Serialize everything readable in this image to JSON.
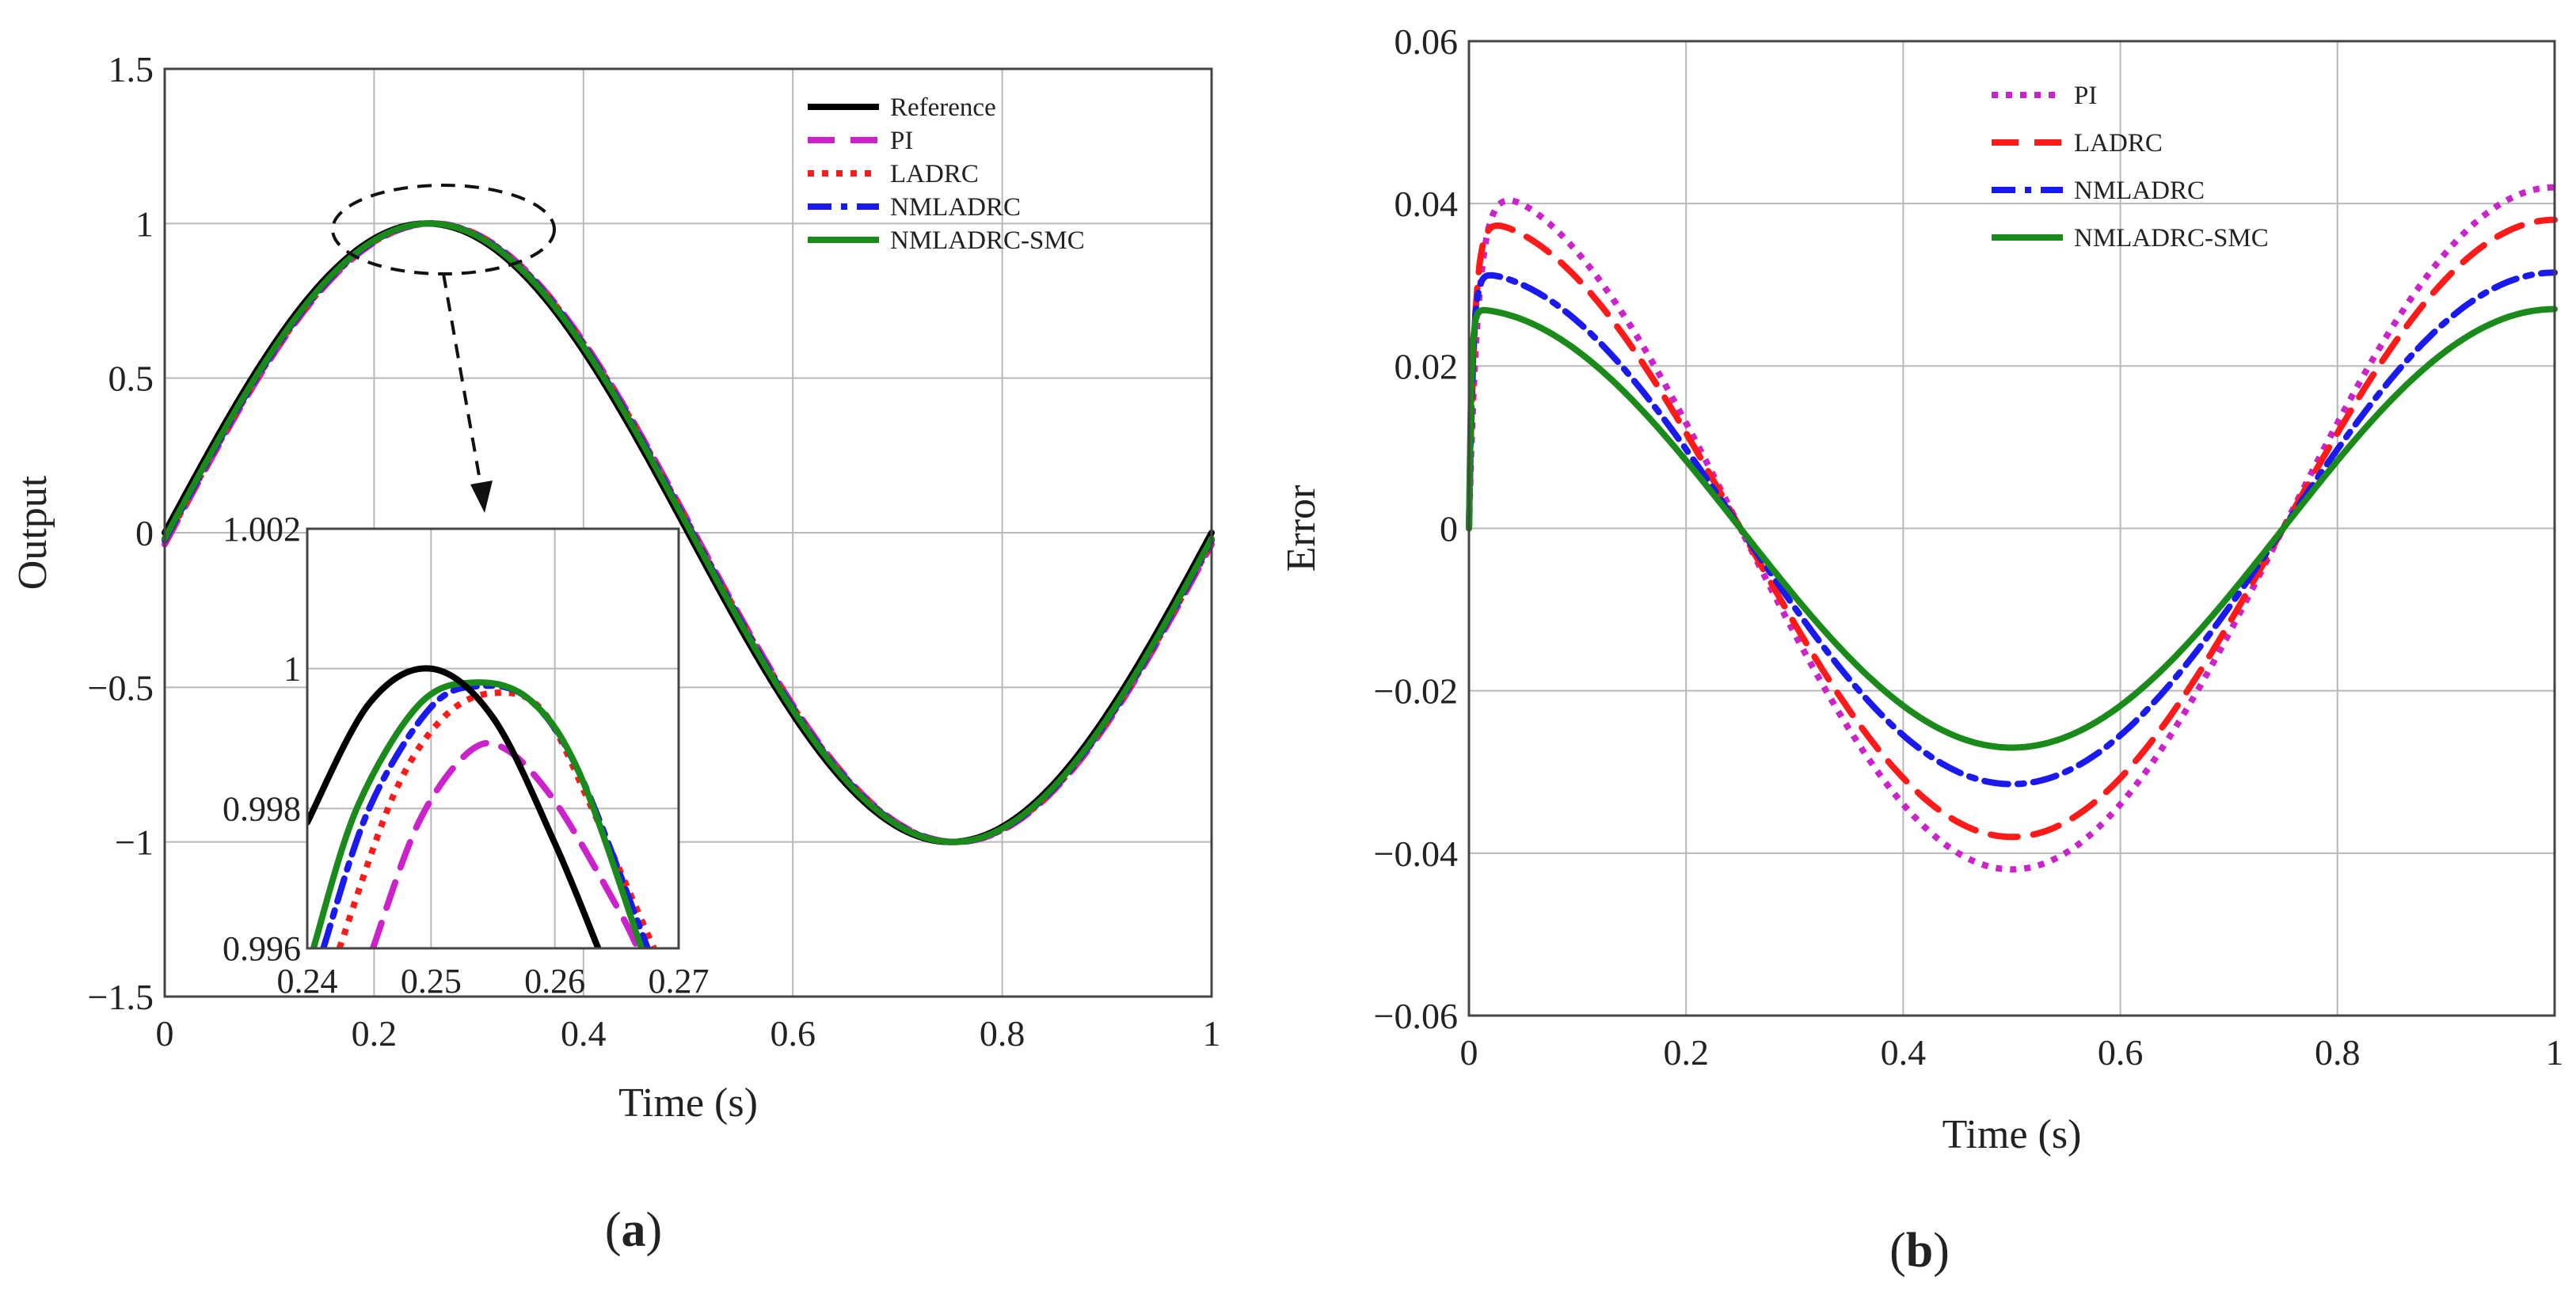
{
  "chart_data": [
    {
      "id": "a",
      "type": "line",
      "panel_label": [
        "(",
        "a",
        ")"
      ],
      "xlabel": "Time (s)",
      "ylabel": "Output",
      "xlim": [
        0,
        1
      ],
      "ylim": [
        -1.5,
        1.5
      ],
      "xticks": [
        0,
        0.2,
        0.4,
        0.6,
        0.8,
        1
      ],
      "xtick_labels": [
        "0",
        "0.2",
        "0.4",
        "0.6",
        "0.8",
        "1"
      ],
      "yticks": [
        -1.5,
        -1,
        -0.5,
        0,
        0.5,
        1,
        1.5
      ],
      "ytick_labels": [
        "−1.5",
        "−1",
        "−0.5",
        "0",
        "0.5",
        "1",
        "1.5"
      ],
      "grid": true,
      "legend_position": "top-right",
      "series": [
        {
          "name": "Reference",
          "color": "#000000",
          "dash": "solid",
          "model": "sine",
          "lag": 0
        },
        {
          "name": "PI",
          "color": "#cc22cc",
          "dash": "dash",
          "model": "sine",
          "lag": 0.006
        },
        {
          "name": "LADRC",
          "color": "#ff1a1a",
          "dash": "dot",
          "model": "sine",
          "lag": 0.005
        },
        {
          "name": "NMLADRC",
          "color": "#1a1aee",
          "dash": "dashdot",
          "model": "sine",
          "lag": 0.004
        },
        {
          "name": "NMLADRC-SMC",
          "color": "#1a8a1a",
          "dash": "solid",
          "model": "sine",
          "lag": 0.003
        }
      ],
      "inset": {
        "xlim": [
          0.24,
          0.27
        ],
        "ylim": [
          0.996,
          1.002
        ],
        "xticks": [
          0.24,
          0.25,
          0.26,
          0.27
        ],
        "xtick_labels": [
          "0.24",
          "0.25",
          "0.26",
          "0.27"
        ],
        "yticks": [
          0.996,
          0.998,
          1,
          1.002
        ],
        "ytick_labels": [
          "0.996",
          "0.998",
          "1",
          "1.002"
        ],
        "curves": [
          {
            "name": "Reference",
            "points": [
              [
                0.24,
                0.9978
              ],
              [
                0.245,
                0.9995
              ],
              [
                0.25,
                1.0
              ],
              [
                0.255,
                0.9993
              ],
              [
                0.26,
                0.9975
              ],
              [
                0.2635,
                0.996
              ]
            ]
          },
          {
            "name": "PI",
            "points": [
              [
                0.2453,
                0.996
              ],
              [
                0.249,
                0.9978
              ],
              [
                0.253,
                0.9988
              ],
              [
                0.256,
                0.99885
              ],
              [
                0.26,
                0.9981
              ],
              [
                0.265,
                0.9966
              ],
              [
                0.2667,
                0.996
              ]
            ]
          },
          {
            "name": "LADRC",
            "points": [
              [
                0.2426,
                0.996
              ],
              [
                0.247,
                0.9982
              ],
              [
                0.251,
                0.9993
              ],
              [
                0.255,
                0.99965
              ],
              [
                0.259,
                0.9994
              ],
              [
                0.263,
                0.998
              ],
              [
                0.268,
                0.996
              ]
            ]
          },
          {
            "name": "NMLADRC",
            "points": [
              [
                0.2413,
                0.996
              ],
              [
                0.245,
                0.998
              ],
              [
                0.25,
                0.99945
              ],
              [
                0.254,
                0.99975
              ],
              [
                0.258,
                0.99955
              ],
              [
                0.262,
                0.9985
              ],
              [
                0.2675,
                0.996
              ]
            ]
          },
          {
            "name": "NMLADRC-SMC",
            "points": [
              [
                0.2405,
                0.996
              ],
              [
                0.244,
                0.998
              ],
              [
                0.249,
                0.99948
              ],
              [
                0.2535,
                0.9998
              ],
              [
                0.258,
                0.99955
              ],
              [
                0.262,
                0.9985
              ],
              [
                0.267,
                0.996
              ]
            ]
          }
        ]
      }
    },
    {
      "id": "b",
      "type": "line",
      "panel_label": [
        "(",
        "b",
        ")"
      ],
      "xlabel": "Time (s)",
      "ylabel": "Error",
      "xlim": [
        0,
        1
      ],
      "ylim": [
        -0.06,
        0.06
      ],
      "xticks": [
        0,
        0.2,
        0.4,
        0.6,
        0.8,
        1
      ],
      "xtick_labels": [
        "0",
        "0.2",
        "0.4",
        "0.6",
        "0.8",
        "1"
      ],
      "yticks": [
        -0.06,
        -0.04,
        -0.02,
        0,
        0.02,
        0.04,
        0.06
      ],
      "ytick_labels": [
        "−0.06",
        "−0.04",
        "−0.02",
        "0",
        "0.02",
        "0.04",
        "0.06"
      ],
      "grid": true,
      "legend_position": "top-center",
      "series": [
        {
          "name": "PI",
          "color": "#cc22cc",
          "dash": "dot",
          "model": "cos",
          "amplitude": 0.042,
          "rise": 0.025
        },
        {
          "name": "LADRC",
          "color": "#ff1a1a",
          "dash": "dash",
          "model": "cos",
          "amplitude": 0.038,
          "rise": 0.015
        },
        {
          "name": "NMLADRC",
          "color": "#1a1aee",
          "dash": "dashdot",
          "model": "cos",
          "amplitude": 0.0315,
          "rise": 0.01
        },
        {
          "name": "NMLADRC-SMC",
          "color": "#1a8a1a",
          "dash": "solid",
          "model": "cos",
          "amplitude": 0.027,
          "rise": 0.006
        }
      ]
    }
  ]
}
